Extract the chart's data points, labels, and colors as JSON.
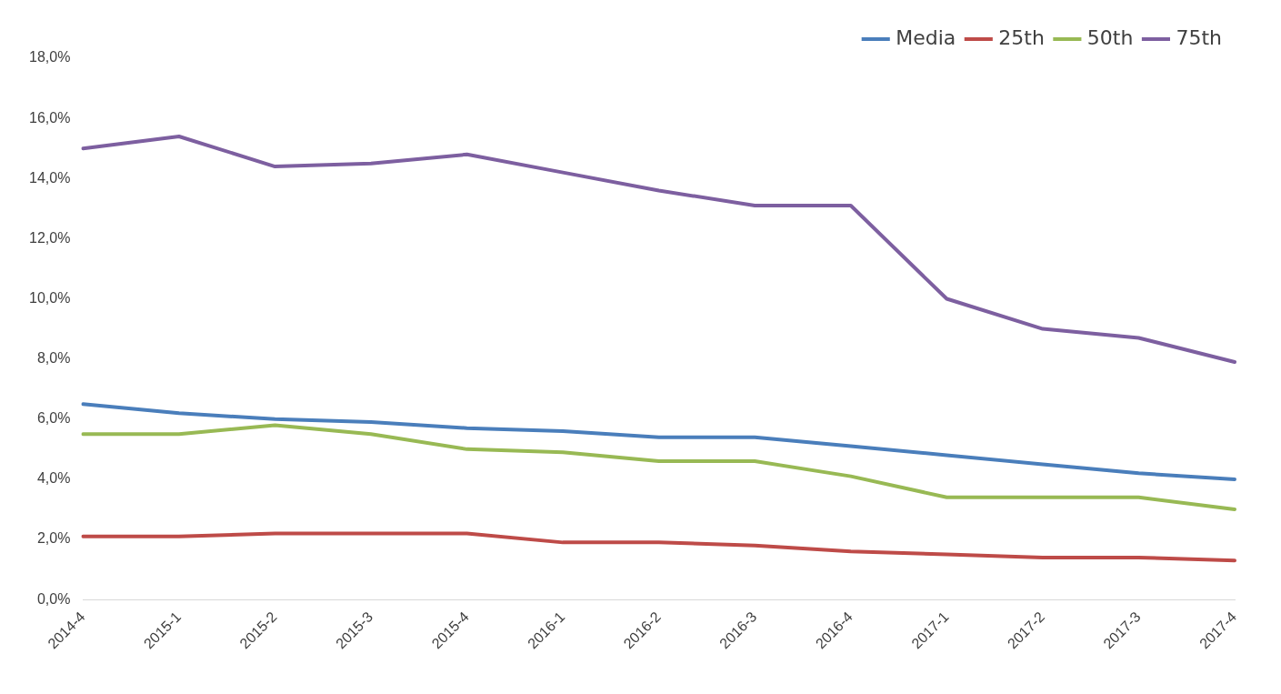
{
  "chart_data": {
    "type": "line",
    "categories": [
      "2014-4",
      "2015-1",
      "2015-2",
      "2015-3",
      "2015-4",
      "2016-1",
      "2016-2",
      "2016-3",
      "2016-4",
      "2017-1",
      "2017-2",
      "2017-3",
      "2017-4"
    ],
    "series": [
      {
        "name": "Media",
        "color": "#4a7ebb",
        "values": [
          6.5,
          6.2,
          6.0,
          5.9,
          5.7,
          5.6,
          5.4,
          5.4,
          5.1,
          4.8,
          4.5,
          4.2,
          4.0
        ]
      },
      {
        "name": "25th",
        "color": "#be4b48",
        "values": [
          2.1,
          2.1,
          2.2,
          2.2,
          2.2,
          1.9,
          1.9,
          1.8,
          1.6,
          1.5,
          1.4,
          1.4,
          1.3
        ]
      },
      {
        "name": "50th",
        "color": "#98b954",
        "values": [
          5.5,
          5.5,
          5.8,
          5.5,
          5.0,
          4.9,
          4.6,
          4.6,
          4.1,
          3.4,
          3.4,
          3.4,
          3.0
        ]
      },
      {
        "name": "75th",
        "color": "#7d5fa0",
        "values": [
          15.0,
          15.4,
          14.4,
          14.5,
          14.8,
          14.2,
          13.6,
          13.1,
          13.1,
          10.0,
          9.0,
          8.7,
          7.9
        ]
      }
    ],
    "ylim": [
      0,
      18
    ],
    "yticks": [
      {
        "value": 0,
        "label": "0,0%"
      },
      {
        "value": 2,
        "label": "2,0%"
      },
      {
        "value": 4,
        "label": "4,0%"
      },
      {
        "value": 6,
        "label": "6,0%"
      },
      {
        "value": 8,
        "label": "8,0%"
      },
      {
        "value": 10,
        "label": "10,0%"
      },
      {
        "value": 12,
        "label": "12,0%"
      },
      {
        "value": 14,
        "label": "14,0%"
      },
      {
        "value": 16,
        "label": "16,0%"
      },
      {
        "value": 18,
        "label": "18,0%"
      }
    ],
    "grid": false,
    "legend": "top right",
    "marker": "none",
    "line_style": "solid"
  }
}
